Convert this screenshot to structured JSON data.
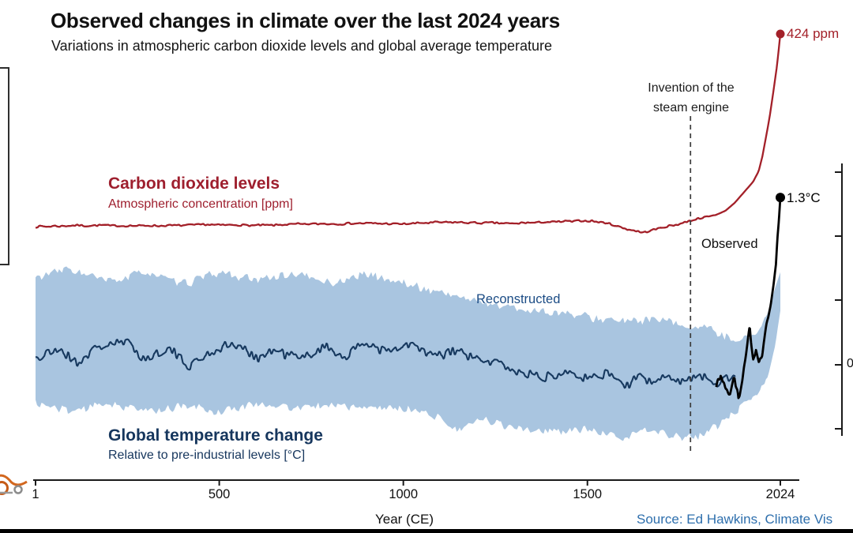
{
  "page": {
    "title": "Observed changes in climate over the last 2024 years",
    "subtitle": "Variations in atmospheric carbon dioxide levels and global average temperature",
    "source": "Source: Ed Hawkins, Climate Vis"
  },
  "labels": {
    "co2_title": "Carbon dioxide levels",
    "co2_subtitle": "Atmospheric concentration [ppm]",
    "temp_title": "Global temperature change",
    "temp_subtitle": "Relative to pre-industrial levels [°C]",
    "observed": "Observed",
    "reconstructed": "Reconstructed",
    "steam_line1": "Invention of the",
    "steam_line2": "steam engine",
    "co2_end_value": "424 ppm",
    "temp_end_value": "1.3°C",
    "x_axis_label": "Year (CE)",
    "right_axis_partial": "0"
  },
  "colors": {
    "co2": "#a32029",
    "co2_text": "#9e1f2e",
    "temp": "#17395f",
    "temp_text": "#16365d",
    "band": "#a9c5e0",
    "observed": "#000000",
    "dashed": "#3c3c3c",
    "axis": "#1a1a1a",
    "source_text": "#2e6fad",
    "reconstructed_label": "#1b4c85"
  },
  "chart_data": {
    "type": "line",
    "title": "Observed changes in climate over the last 2024 years",
    "x": {
      "label": "Year (CE)",
      "range": [
        1,
        2024
      ],
      "ticks": [
        1,
        500,
        1000,
        1500,
        2024
      ]
    },
    "y_co2": {
      "label": "Atmospheric concentration [ppm]",
      "approx_range": [
        270,
        430
      ]
    },
    "y_temp": {
      "label": "Relative to pre-industrial levels [°C]",
      "approx_range": [
        -0.7,
        1.5
      ],
      "visible_tick": "0"
    },
    "events": [
      {
        "year": 1780,
        "label": "Invention of the steam engine"
      }
    ],
    "end_labels": {
      "co2": "424 ppm",
      "temperature": "1.3°C"
    },
    "render_noise": {
      "co2_ppm": 1.0,
      "temp": 0.055,
      "band": 0.045,
      "observed": 0.05
    },
    "series": [
      {
        "name": "Carbon dioxide levels",
        "unit": "ppm",
        "points": [
          [
            1,
            278
          ],
          [
            150,
            279
          ],
          [
            300,
            278.5
          ],
          [
            450,
            279.5
          ],
          [
            600,
            279
          ],
          [
            750,
            280
          ],
          [
            900,
            280.5
          ],
          [
            1000,
            280
          ],
          [
            1100,
            281.5
          ],
          [
            1200,
            281
          ],
          [
            1300,
            280.5
          ],
          [
            1400,
            281.5
          ],
          [
            1500,
            282.5
          ],
          [
            1550,
            281
          ],
          [
            1610,
            276
          ],
          [
            1650,
            273.5
          ],
          [
            1700,
            277
          ],
          [
            1750,
            280
          ],
          [
            1800,
            284
          ],
          [
            1850,
            287
          ],
          [
            1875,
            290
          ],
          [
            1900,
            296
          ],
          [
            1925,
            304
          ],
          [
            1950,
            312
          ],
          [
            1965,
            320
          ],
          [
            1975,
            331
          ],
          [
            1985,
            346
          ],
          [
            1995,
            361
          ],
          [
            2005,
            380
          ],
          [
            2015,
            400
          ],
          [
            2020,
            413
          ],
          [
            2024,
            424
          ]
        ]
      },
      {
        "name": "Reconstructed temperature",
        "unit": "°C",
        "points": [
          [
            1,
            0.05
          ],
          [
            60,
            0.12
          ],
          [
            120,
            0.02
          ],
          [
            180,
            0.15
          ],
          [
            240,
            0.18
          ],
          [
            300,
            0.05
          ],
          [
            360,
            0.12
          ],
          [
            420,
            0
          ],
          [
            480,
            0.1
          ],
          [
            540,
            0.16
          ],
          [
            600,
            0.06
          ],
          [
            660,
            0.12
          ],
          [
            720,
            0.04
          ],
          [
            780,
            0.14
          ],
          [
            840,
            0.08
          ],
          [
            900,
            0.16
          ],
          [
            960,
            0.1
          ],
          [
            1020,
            0.16
          ],
          [
            1080,
            0.06
          ],
          [
            1140,
            0.12
          ],
          [
            1200,
            0.04
          ],
          [
            1260,
            0
          ],
          [
            1320,
            -0.06
          ],
          [
            1380,
            -0.1
          ],
          [
            1440,
            -0.04
          ],
          [
            1500,
            -0.12
          ],
          [
            1560,
            -0.06
          ],
          [
            1600,
            -0.16
          ],
          [
            1640,
            -0.1
          ],
          [
            1680,
            -0.14
          ],
          [
            1720,
            -0.06
          ],
          [
            1760,
            -0.12
          ],
          [
            1800,
            -0.08
          ],
          [
            1850,
            -0.14
          ],
          [
            1902,
            -0.06
          ]
        ]
      },
      {
        "name": "Observed temperature",
        "unit": "°C",
        "points": [
          [
            1850,
            -0.16
          ],
          [
            1862,
            -0.06
          ],
          [
            1875,
            -0.22
          ],
          [
            1888,
            -0.26
          ],
          [
            1900,
            -0.1
          ],
          [
            1910,
            -0.28
          ],
          [
            1921,
            -0.1
          ],
          [
            1930,
            0.05
          ],
          [
            1941,
            0.3
          ],
          [
            1950,
            0.02
          ],
          [
            1958,
            0.12
          ],
          [
            1966,
            0
          ],
          [
            1975,
            0.08
          ],
          [
            1982,
            0.22
          ],
          [
            1990,
            0.36
          ],
          [
            1998,
            0.48
          ],
          [
            2006,
            0.64
          ],
          [
            2012,
            0.78
          ],
          [
            2016,
            0.98
          ],
          [
            2020,
            1.12
          ],
          [
            2024,
            1.3
          ]
        ]
      }
    ],
    "uncertainty_band": {
      "name": "Reconstruction uncertainty",
      "upper": [
        [
          1,
          0.68
        ],
        [
          100,
          0.74
        ],
        [
          200,
          0.64
        ],
        [
          300,
          0.72
        ],
        [
          400,
          0.63
        ],
        [
          500,
          0.72
        ],
        [
          600,
          0.65
        ],
        [
          700,
          0.72
        ],
        [
          800,
          0.63
        ],
        [
          900,
          0.7
        ],
        [
          1000,
          0.63
        ],
        [
          1100,
          0.56
        ],
        [
          1200,
          0.5
        ],
        [
          1300,
          0.44
        ],
        [
          1400,
          0.41
        ],
        [
          1500,
          0.37
        ],
        [
          1600,
          0.33
        ],
        [
          1700,
          0.35
        ],
        [
          1800,
          0.29
        ],
        [
          1850,
          0.25
        ],
        [
          1900,
          0.2
        ],
        [
          1950,
          0.22
        ],
        [
          1990,
          0.4
        ],
        [
          2010,
          0.6
        ],
        [
          2024,
          0.72
        ]
      ],
      "lower": [
        [
          1,
          -0.3
        ],
        [
          100,
          -0.36
        ],
        [
          200,
          -0.3
        ],
        [
          300,
          -0.36
        ],
        [
          400,
          -0.32
        ],
        [
          500,
          -0.36
        ],
        [
          600,
          -0.3
        ],
        [
          700,
          -0.34
        ],
        [
          800,
          -0.3
        ],
        [
          900,
          -0.34
        ],
        [
          1000,
          -0.34
        ],
        [
          1100,
          -0.4
        ],
        [
          1150,
          -0.52
        ],
        [
          1200,
          -0.42
        ],
        [
          1300,
          -0.48
        ],
        [
          1400,
          -0.52
        ],
        [
          1500,
          -0.5
        ],
        [
          1600,
          -0.58
        ],
        [
          1650,
          -0.5
        ],
        [
          1700,
          -0.54
        ],
        [
          1800,
          -0.56
        ],
        [
          1850,
          -0.48
        ],
        [
          1900,
          -0.38
        ],
        [
          1950,
          -0.26
        ],
        [
          1990,
          -0.1
        ],
        [
          2010,
          0.15
        ],
        [
          2024,
          0.42
        ]
      ]
    }
  }
}
